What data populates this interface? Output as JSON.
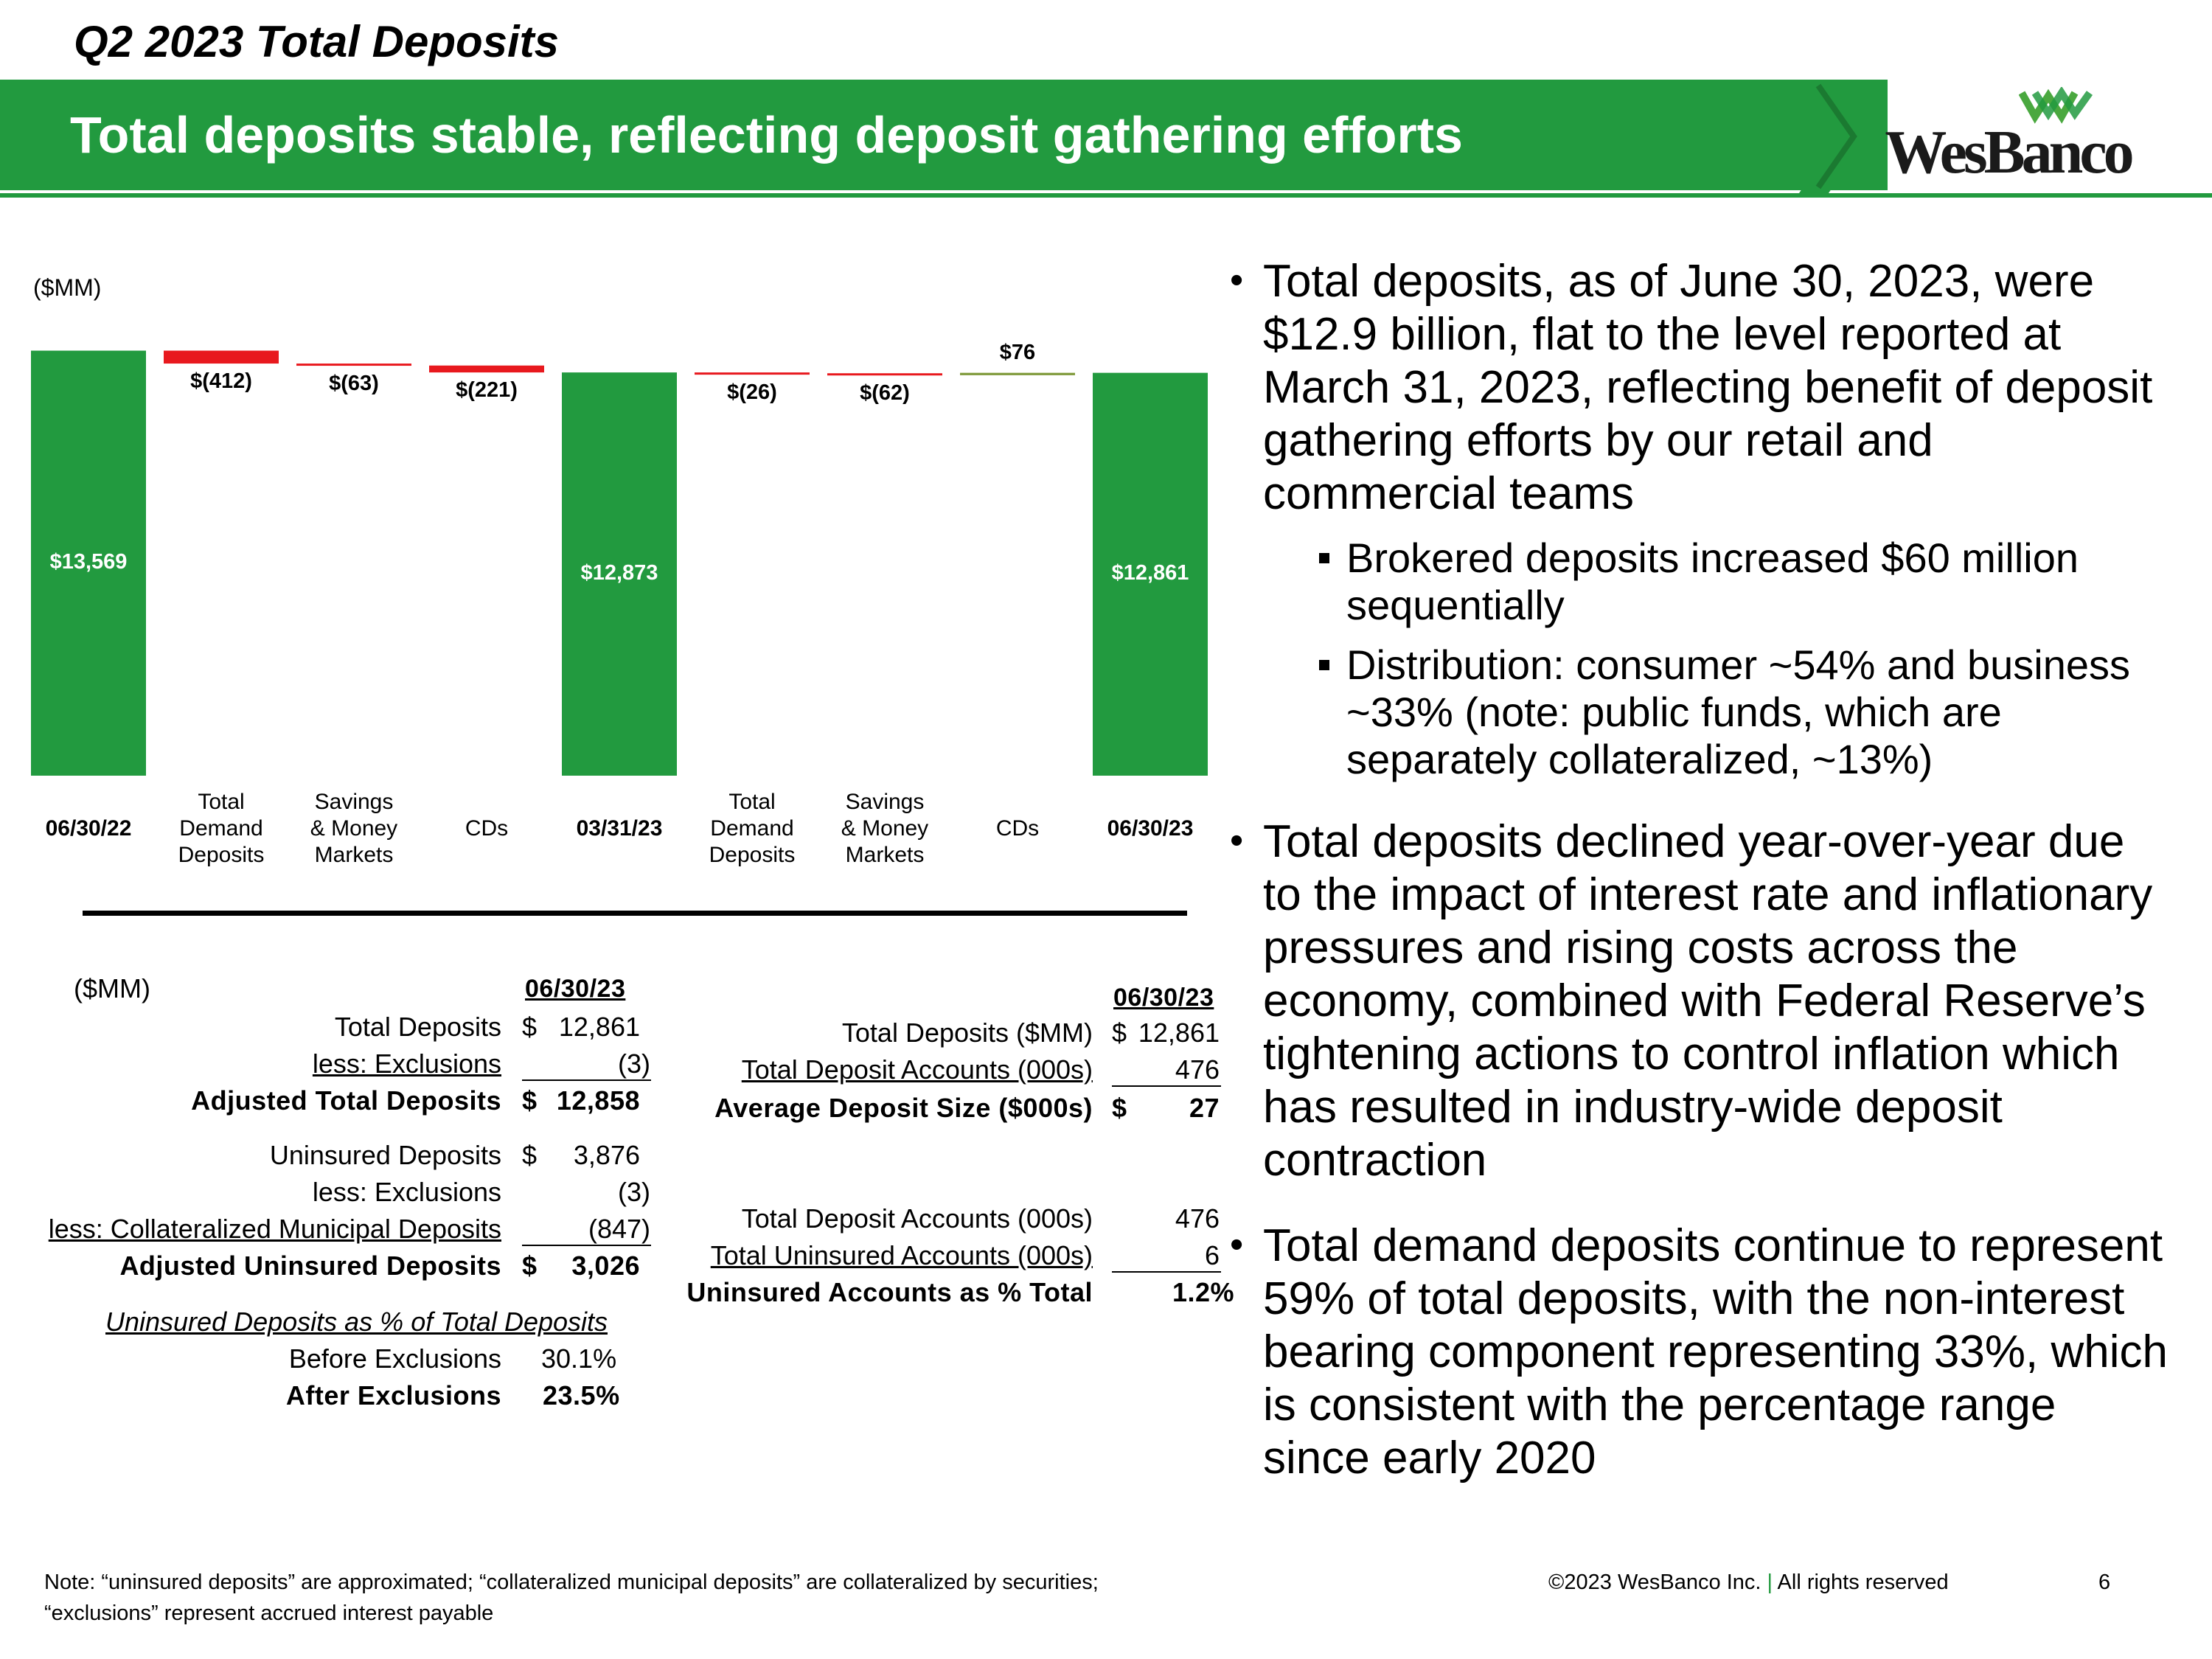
{
  "header": {
    "kicker": "Q2 2023 Total Deposits",
    "title": "Total deposits stable, reflecting deposit gathering efforts",
    "logo_text": "WesBanco",
    "brand_color": "#229a3f"
  },
  "chart_data": {
    "type": "bar",
    "subtype": "waterfall",
    "unit_label": "($MM)",
    "categories": [
      "06/30/22",
      "Total Demand Deposits",
      "Savings & Money Markets",
      "CDs",
      "03/31/23",
      "Total Demand Deposits",
      "Savings & Money Markets",
      "CDs",
      "06/30/23"
    ],
    "category_lines": [
      [
        "06/30/22"
      ],
      [
        "Total",
        "Demand",
        "Deposits"
      ],
      [
        "Savings",
        "& Money",
        "Markets"
      ],
      [
        "CDs"
      ],
      [
        "03/31/23"
      ],
      [
        "Total",
        "Demand",
        "Deposits"
      ],
      [
        "Savings",
        "& Money",
        "Markets"
      ],
      [
        "CDs"
      ],
      [
        "06/30/23"
      ]
    ],
    "bar_kinds": [
      "total",
      "change",
      "change",
      "change",
      "total",
      "change",
      "change",
      "change",
      "total"
    ],
    "values": [
      13569,
      -412,
      -63,
      -221,
      12873,
      -26,
      -62,
      76,
      12861
    ],
    "data_labels": [
      "$13,569",
      "$(412)",
      "$(63)",
      "$(221)",
      "$12,873",
      "$(26)",
      "$(62)",
      "$76",
      "$12,861"
    ],
    "colors": {
      "total": "#229a3f",
      "decrease": "#e8191e",
      "increase": "#7f9a3a"
    },
    "ylim": [
      0,
      13700
    ]
  },
  "tables": {
    "left": {
      "unit_label": "($MM)",
      "header": "06/30/23",
      "rows": [
        {
          "label": "Total Deposits",
          "currency": "$",
          "value": "12,861"
        },
        {
          "label": "less: Exclusions",
          "currency": "",
          "value": "(3)"
        },
        {
          "label": "Adjusted Total Deposits",
          "currency": "$",
          "value": "12,858"
        },
        {
          "label": "Uninsured Deposits",
          "currency": "$",
          "value": "3,876"
        },
        {
          "label": "less: Exclusions",
          "currency": "",
          "value": "(3)"
        },
        {
          "label": "less: Collateralized Municipal Deposits",
          "currency": "",
          "value": "(847)"
        },
        {
          "label": "Adjusted Uninsured Deposits",
          "currency": "$",
          "value": "3,026"
        }
      ],
      "pct_title": "Uninsured Deposits as % of Total Deposits",
      "pct_rows": [
        {
          "label": "Before Exclusions",
          "value": "30.1%"
        },
        {
          "label": "After Exclusions",
          "value": "23.5%"
        }
      ]
    },
    "right": {
      "header": "06/30/23",
      "rows": [
        {
          "label": "Total Deposits ($MM)",
          "currency": "$",
          "value": "12,861"
        },
        {
          "label": "Total Deposit Accounts (000s)",
          "currency": "",
          "value": "476"
        },
        {
          "label": "Average Deposit Size ($000s)",
          "currency": "$",
          "value": "27"
        },
        {
          "label": "Total Deposit Accounts (000s)",
          "currency": "",
          "value": "476"
        },
        {
          "label": "Total Uninsured Accounts (000s)",
          "currency": "",
          "value": "6"
        },
        {
          "label": "Uninsured Accounts as % Total",
          "currency": "",
          "value": "1.2%"
        }
      ]
    }
  },
  "bullets": {
    "main": [
      "Total deposits, as of June 30, 2023, were $12.9 billion, flat to the level reported at March 31, 2023, reflecting benefit of deposit gathering efforts by our retail and commercial teams",
      "Total deposits declined year-over-year due to the impact of interest rate and inflationary pressures and rising costs across the economy, combined with Federal Reserve’s tightening actions to control inflation which has resulted in industry-wide deposit contraction",
      "Total demand deposits continue to represent 59% of total deposits, with the non-interest bearing component representing 33%, which is consistent with the percentage range since early 2020"
    ],
    "sub": [
      "Brokered deposits increased $60 million sequentially",
      "Distribution: consumer ~54% and business ~33% (note: public funds, which are separately collateralized, ~13%)"
    ]
  },
  "footer": {
    "note_line1": "Note: “uninsured deposits” are approximated; “collateralized municipal deposits” are collateralized by securities;",
    "note_line2": "“exclusions” represent accrued interest payable",
    "copyright": "©2023 WesBanco Inc.",
    "separator": "|",
    "rights": "All rights reserved",
    "page_number": "6"
  }
}
